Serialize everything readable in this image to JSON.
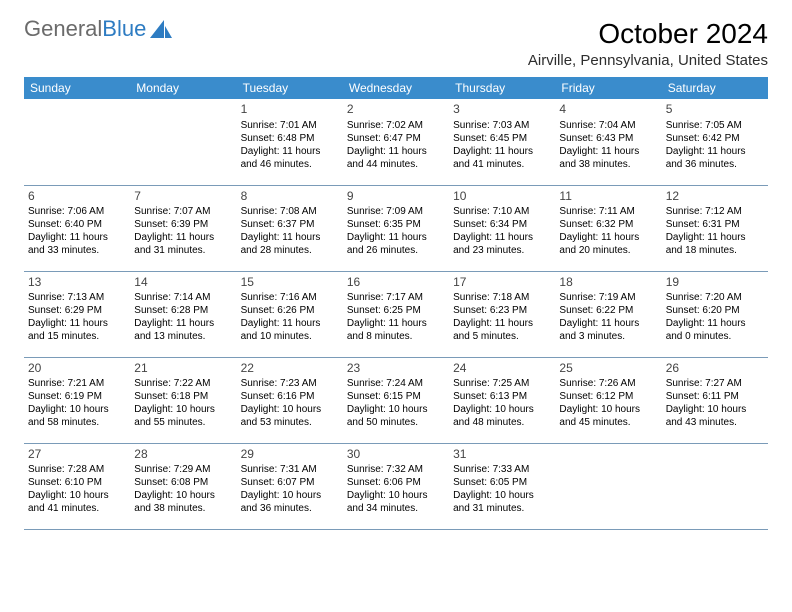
{
  "logo": {
    "text1": "General",
    "text2": "Blue"
  },
  "title": "October 2024",
  "location": "Airville, Pennsylvania, United States",
  "weekdays": [
    "Sunday",
    "Monday",
    "Tuesday",
    "Wednesday",
    "Thursday",
    "Friday",
    "Saturday"
  ],
  "header_bg": "#3a8ccc",
  "header_fg": "#ffffff",
  "cell_border": "#7a9bb8",
  "weeks": [
    [
      null,
      null,
      {
        "d": "1",
        "sr": "Sunrise: 7:01 AM",
        "ss": "Sunset: 6:48 PM",
        "dl1": "Daylight: 11 hours",
        "dl2": "and 46 minutes."
      },
      {
        "d": "2",
        "sr": "Sunrise: 7:02 AM",
        "ss": "Sunset: 6:47 PM",
        "dl1": "Daylight: 11 hours",
        "dl2": "and 44 minutes."
      },
      {
        "d": "3",
        "sr": "Sunrise: 7:03 AM",
        "ss": "Sunset: 6:45 PM",
        "dl1": "Daylight: 11 hours",
        "dl2": "and 41 minutes."
      },
      {
        "d": "4",
        "sr": "Sunrise: 7:04 AM",
        "ss": "Sunset: 6:43 PM",
        "dl1": "Daylight: 11 hours",
        "dl2": "and 38 minutes."
      },
      {
        "d": "5",
        "sr": "Sunrise: 7:05 AM",
        "ss": "Sunset: 6:42 PM",
        "dl1": "Daylight: 11 hours",
        "dl2": "and 36 minutes."
      }
    ],
    [
      {
        "d": "6",
        "sr": "Sunrise: 7:06 AM",
        "ss": "Sunset: 6:40 PM",
        "dl1": "Daylight: 11 hours",
        "dl2": "and 33 minutes."
      },
      {
        "d": "7",
        "sr": "Sunrise: 7:07 AM",
        "ss": "Sunset: 6:39 PM",
        "dl1": "Daylight: 11 hours",
        "dl2": "and 31 minutes."
      },
      {
        "d": "8",
        "sr": "Sunrise: 7:08 AM",
        "ss": "Sunset: 6:37 PM",
        "dl1": "Daylight: 11 hours",
        "dl2": "and 28 minutes."
      },
      {
        "d": "9",
        "sr": "Sunrise: 7:09 AM",
        "ss": "Sunset: 6:35 PM",
        "dl1": "Daylight: 11 hours",
        "dl2": "and 26 minutes."
      },
      {
        "d": "10",
        "sr": "Sunrise: 7:10 AM",
        "ss": "Sunset: 6:34 PM",
        "dl1": "Daylight: 11 hours",
        "dl2": "and 23 minutes."
      },
      {
        "d": "11",
        "sr": "Sunrise: 7:11 AM",
        "ss": "Sunset: 6:32 PM",
        "dl1": "Daylight: 11 hours",
        "dl2": "and 20 minutes."
      },
      {
        "d": "12",
        "sr": "Sunrise: 7:12 AM",
        "ss": "Sunset: 6:31 PM",
        "dl1": "Daylight: 11 hours",
        "dl2": "and 18 minutes."
      }
    ],
    [
      {
        "d": "13",
        "sr": "Sunrise: 7:13 AM",
        "ss": "Sunset: 6:29 PM",
        "dl1": "Daylight: 11 hours",
        "dl2": "and 15 minutes."
      },
      {
        "d": "14",
        "sr": "Sunrise: 7:14 AM",
        "ss": "Sunset: 6:28 PM",
        "dl1": "Daylight: 11 hours",
        "dl2": "and 13 minutes."
      },
      {
        "d": "15",
        "sr": "Sunrise: 7:16 AM",
        "ss": "Sunset: 6:26 PM",
        "dl1": "Daylight: 11 hours",
        "dl2": "and 10 minutes."
      },
      {
        "d": "16",
        "sr": "Sunrise: 7:17 AM",
        "ss": "Sunset: 6:25 PM",
        "dl1": "Daylight: 11 hours",
        "dl2": "and 8 minutes."
      },
      {
        "d": "17",
        "sr": "Sunrise: 7:18 AM",
        "ss": "Sunset: 6:23 PM",
        "dl1": "Daylight: 11 hours",
        "dl2": "and 5 minutes."
      },
      {
        "d": "18",
        "sr": "Sunrise: 7:19 AM",
        "ss": "Sunset: 6:22 PM",
        "dl1": "Daylight: 11 hours",
        "dl2": "and 3 minutes."
      },
      {
        "d": "19",
        "sr": "Sunrise: 7:20 AM",
        "ss": "Sunset: 6:20 PM",
        "dl1": "Daylight: 11 hours",
        "dl2": "and 0 minutes."
      }
    ],
    [
      {
        "d": "20",
        "sr": "Sunrise: 7:21 AM",
        "ss": "Sunset: 6:19 PM",
        "dl1": "Daylight: 10 hours",
        "dl2": "and 58 minutes."
      },
      {
        "d": "21",
        "sr": "Sunrise: 7:22 AM",
        "ss": "Sunset: 6:18 PM",
        "dl1": "Daylight: 10 hours",
        "dl2": "and 55 minutes."
      },
      {
        "d": "22",
        "sr": "Sunrise: 7:23 AM",
        "ss": "Sunset: 6:16 PM",
        "dl1": "Daylight: 10 hours",
        "dl2": "and 53 minutes."
      },
      {
        "d": "23",
        "sr": "Sunrise: 7:24 AM",
        "ss": "Sunset: 6:15 PM",
        "dl1": "Daylight: 10 hours",
        "dl2": "and 50 minutes."
      },
      {
        "d": "24",
        "sr": "Sunrise: 7:25 AM",
        "ss": "Sunset: 6:13 PM",
        "dl1": "Daylight: 10 hours",
        "dl2": "and 48 minutes."
      },
      {
        "d": "25",
        "sr": "Sunrise: 7:26 AM",
        "ss": "Sunset: 6:12 PM",
        "dl1": "Daylight: 10 hours",
        "dl2": "and 45 minutes."
      },
      {
        "d": "26",
        "sr": "Sunrise: 7:27 AM",
        "ss": "Sunset: 6:11 PM",
        "dl1": "Daylight: 10 hours",
        "dl2": "and 43 minutes."
      }
    ],
    [
      {
        "d": "27",
        "sr": "Sunrise: 7:28 AM",
        "ss": "Sunset: 6:10 PM",
        "dl1": "Daylight: 10 hours",
        "dl2": "and 41 minutes."
      },
      {
        "d": "28",
        "sr": "Sunrise: 7:29 AM",
        "ss": "Sunset: 6:08 PM",
        "dl1": "Daylight: 10 hours",
        "dl2": "and 38 minutes."
      },
      {
        "d": "29",
        "sr": "Sunrise: 7:31 AM",
        "ss": "Sunset: 6:07 PM",
        "dl1": "Daylight: 10 hours",
        "dl2": "and 36 minutes."
      },
      {
        "d": "30",
        "sr": "Sunrise: 7:32 AM",
        "ss": "Sunset: 6:06 PM",
        "dl1": "Daylight: 10 hours",
        "dl2": "and 34 minutes."
      },
      {
        "d": "31",
        "sr": "Sunrise: 7:33 AM",
        "ss": "Sunset: 6:05 PM",
        "dl1": "Daylight: 10 hours",
        "dl2": "and 31 minutes."
      },
      null,
      null
    ]
  ]
}
